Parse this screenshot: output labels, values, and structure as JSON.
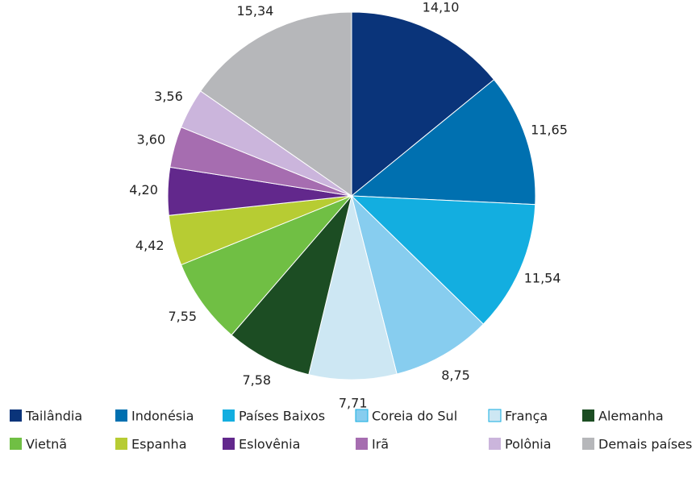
{
  "chart_data": {
    "type": "pie",
    "categories": [
      "Tailândia",
      "Indonésia",
      "Países Baixos",
      "Coreia do Sul",
      "França",
      "Alemanha",
      "Vietnã",
      "Espanha",
      "Eslovênia",
      "Irã",
      "Polônia",
      "Demais países"
    ],
    "values": [
      14.1,
      11.65,
      11.54,
      8.75,
      7.71,
      7.58,
      7.55,
      4.42,
      4.2,
      3.6,
      3.56,
      15.34
    ],
    "value_labels": [
      "14,10",
      "11,65",
      "11,54",
      "8,75",
      "7,71",
      "7,58",
      "7,55",
      "4,42",
      "4,20",
      "3,60",
      "3,56",
      "15,34"
    ],
    "colors": [
      "#0a347a",
      "#0070b0",
      "#13aee0",
      "#87cdef",
      "#cde7f3",
      "#1c4d23",
      "#70bf44",
      "#b7cc33",
      "#62288c",
      "#a66db0",
      "#cbb5dc",
      "#b6b7ba"
    ],
    "legend": "bottom"
  }
}
